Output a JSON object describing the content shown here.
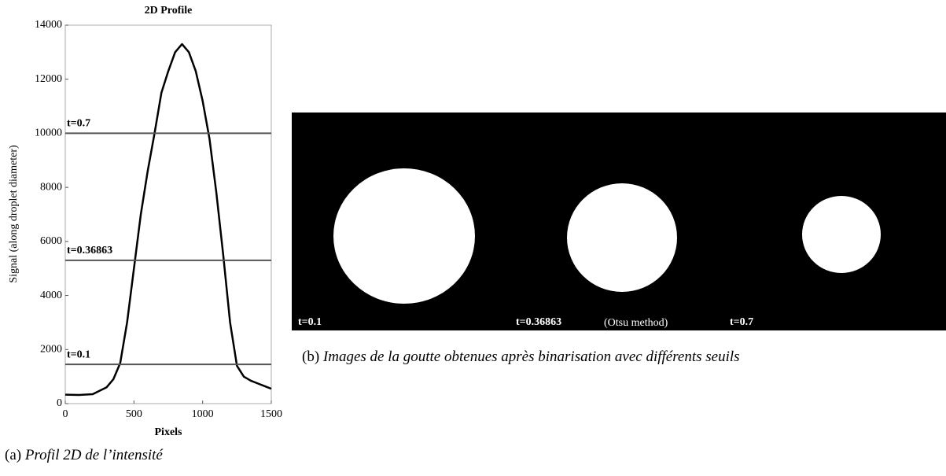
{
  "chart_data": {
    "type": "line",
    "title": "2D Profile",
    "x_label": "Pixels",
    "y_label": "Signal (along droplet diameter)",
    "x": [
      0,
      100,
      200,
      300,
      350,
      400,
      450,
      500,
      550,
      600,
      650,
      700,
      750,
      800,
      850,
      900,
      950,
      1000,
      1050,
      1100,
      1150,
      1200,
      1250,
      1300,
      1350,
      1400,
      1450,
      1500
    ],
    "series": [
      {
        "color": "#000000",
        "values": [
          330,
          320,
          350,
          600,
          900,
          1500,
          3000,
          5000,
          7000,
          8600,
          10000,
          11500,
          12300,
          13000,
          13300,
          13000,
          12300,
          11200,
          9800,
          7800,
          5500,
          3000,
          1400,
          1000,
          850,
          750,
          650,
          550
        ]
      }
    ],
    "thresholds": [
      {
        "label": "t=0.7",
        "value": 10000
      },
      {
        "label": "t=0.36863",
        "value": 5300
      },
      {
        "label": "t=0.1",
        "value": 1450
      }
    ],
    "xlim": [
      0,
      1500
    ],
    "xticks": [
      0,
      500,
      1000,
      1500
    ],
    "ylim": [
      0,
      14000
    ],
    "yticks": [
      0,
      2000,
      4000,
      6000,
      8000,
      10000,
      12000,
      14000
    ]
  },
  "image_panel": {
    "labels": [
      "t=0.1",
      "t=0.36863",
      "t=0.7"
    ],
    "note": "(Otsu method)"
  },
  "captions": {
    "a": {
      "tag": "(a)",
      "text": "Profil 2D de l’intensité"
    },
    "b": {
      "tag": "(b)",
      "text": "Images de la goutte obtenues après binarisation avec différents seuils"
    }
  }
}
